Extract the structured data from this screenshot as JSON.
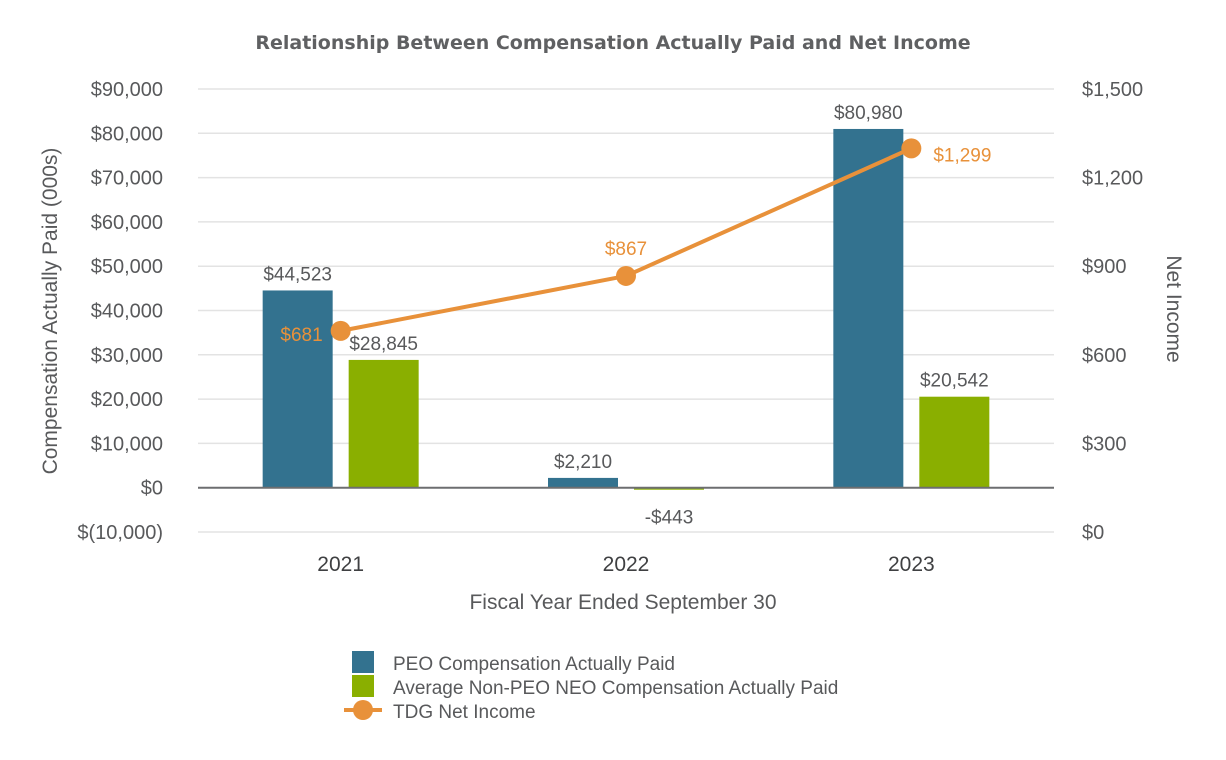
{
  "chart_data": {
    "type": "bar",
    "title": "Relationship Between Compensation Actually Paid and Net Income",
    "xlabel": "Fiscal Year Ended September 30",
    "ylabel": "Compensation Actually Paid (000s)",
    "y2label": "Net Income",
    "categories": [
      "2021",
      "2022",
      "2023"
    ],
    "ylim": [
      -10000,
      90000
    ],
    "y2lim": [
      0,
      1500
    ],
    "yticks": [
      {
        "value": 90000,
        "label": "$90,000"
      },
      {
        "value": 80000,
        "label": "$80,000"
      },
      {
        "value": 70000,
        "label": "$70,000"
      },
      {
        "value": 60000,
        "label": "$60,000"
      },
      {
        "value": 50000,
        "label": "$50,000"
      },
      {
        "value": 40000,
        "label": "$40,000"
      },
      {
        "value": 30000,
        "label": "$30,000"
      },
      {
        "value": 20000,
        "label": "$20,000"
      },
      {
        "value": 10000,
        "label": "$10,000"
      },
      {
        "value": 0,
        "label": "$0"
      },
      {
        "value": -10000,
        "label": "$(10,000)"
      }
    ],
    "y2ticks": [
      {
        "value": 1500,
        "label": "$1,500"
      },
      {
        "value": 1200,
        "label": "$1,200"
      },
      {
        "value": 900,
        "label": "$900"
      },
      {
        "value": 600,
        "label": "$600"
      },
      {
        "value": 300,
        "label": "$300"
      },
      {
        "value": 0,
        "label": "$0"
      }
    ],
    "grid": true,
    "series": [
      {
        "name": "PEO Compensation Actually Paid",
        "type": "bar",
        "axis": "left",
        "color": "#33728f",
        "values": [
          44523,
          2210,
          80980
        ],
        "labels": [
          "$44,523",
          "$2,210",
          "$80,980"
        ]
      },
      {
        "name": "Average Non-PEO NEO Compensation Actually Paid",
        "type": "bar",
        "axis": "left",
        "color": "#8aaf00",
        "values": [
          28845,
          -443,
          20542
        ],
        "labels": [
          "$28,845",
          "-$443",
          "$20,542"
        ]
      },
      {
        "name": "TDG Net Income",
        "type": "line",
        "axis": "right",
        "color": "#e8913a",
        "values": [
          681,
          867,
          1299
        ],
        "labels": [
          "$681",
          "$867",
          "$1,299"
        ]
      }
    ],
    "legend": "bottom"
  }
}
